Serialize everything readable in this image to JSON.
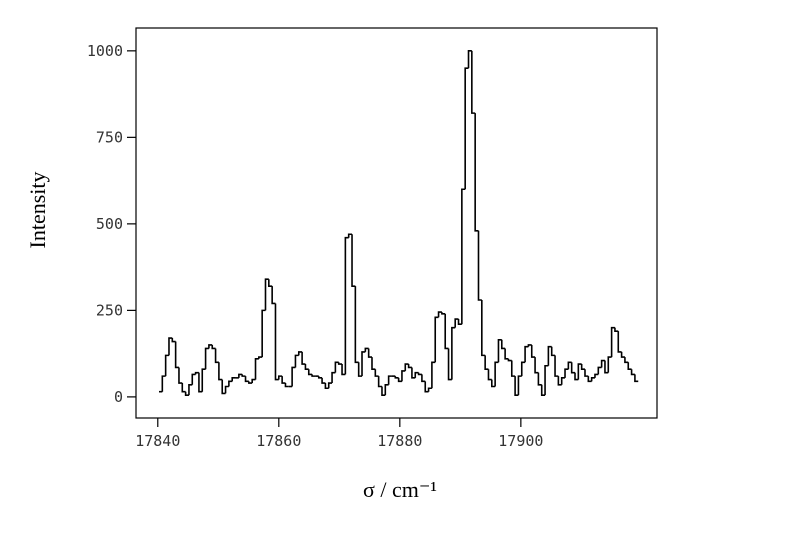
{
  "chart_data": {
    "type": "line",
    "step": true,
    "x_label": "σ / cm⁻¹",
    "y_label": "Intensity",
    "x": [
      17840.2,
      17840.75,
      17841.3,
      17841.85,
      17842.4,
      17842.95,
      17843.5,
      17844.05,
      17844.6,
      17845.15,
      17845.7,
      17846.25,
      17846.8,
      17847.35,
      17847.9,
      17848.45,
      17849,
      17849.55,
      17850.1,
      17850.65,
      17851.2,
      17851.75,
      17852.3,
      17852.85,
      17853.4,
      17853.95,
      17854.5,
      17855.05,
      17855.6,
      17856.15,
      17856.7,
      17857.25,
      17857.8,
      17858.35,
      17858.9,
      17859.45,
      17860,
      17860.55,
      17861.1,
      17861.65,
      17862.2,
      17862.75,
      17863.3,
      17863.85,
      17864.4,
      17864.95,
      17865.5,
      17866.05,
      17866.6,
      17867.15,
      17867.7,
      17868.25,
      17868.8,
      17869.35,
      17869.9,
      17870.45,
      17871,
      17871.55,
      17872.1,
      17872.65,
      17873.2,
      17873.75,
      17874.3,
      17874.85,
      17875.4,
      17875.95,
      17876.5,
      17877.05,
      17877.6,
      17878.15,
      17878.7,
      17879.25,
      17879.8,
      17880.35,
      17880.9,
      17881.45,
      17882,
      17882.55,
      17883.1,
      17883.65,
      17884.2,
      17884.75,
      17885.3,
      17885.85,
      17886.4,
      17886.95,
      17887.5,
      17888.05,
      17888.6,
      17889.15,
      17889.7,
      17890.25,
      17890.8,
      17891.35,
      17891.9,
      17892.45,
      17893,
      17893.55,
      17894.1,
      17894.65,
      17895.2,
      17895.75,
      17896.3,
      17896.85,
      17897.4,
      17897.95,
      17898.5,
      17899.05,
      17899.6,
      17900.15,
      17900.7,
      17901.25,
      17901.8,
      17902.35,
      17902.9,
      17903.45,
      17904,
      17904.55,
      17905.1,
      17905.65,
      17906.2,
      17906.75,
      17907.3,
      17907.85,
      17908.4,
      17908.95,
      17909.5,
      17910.05,
      17910.6,
      17911.15,
      17911.7,
      17912.25,
      17912.8,
      17913.35,
      17913.9,
      17914.45,
      17915,
      17915.55,
      17916.1,
      17916.65,
      17917.2,
      17917.75,
      17918.3,
      17918.85
    ],
    "values": [
      15,
      60,
      120,
      170,
      160,
      85,
      40,
      15,
      5,
      35,
      65,
      70,
      15,
      80,
      140,
      150,
      140,
      100,
      50,
      10,
      30,
      45,
      55,
      55,
      65,
      60,
      45,
      40,
      50,
      110,
      115,
      250,
      340,
      320,
      270,
      50,
      60,
      40,
      30,
      30,
      85,
      120,
      130,
      95,
      80,
      65,
      60,
      60,
      55,
      40,
      25,
      40,
      70,
      100,
      95,
      65,
      460,
      470,
      320,
      100,
      60,
      130,
      140,
      115,
      80,
      60,
      30,
      5,
      35,
      60,
      60,
      55,
      45,
      75,
      95,
      85,
      55,
      70,
      65,
      45,
      15,
      25,
      100,
      230,
      245,
      240,
      140,
      50,
      200,
      225,
      210,
      600,
      950,
      1000,
      820,
      480,
      280,
      120,
      80,
      50,
      30,
      100,
      165,
      140,
      110,
      105,
      60,
      5,
      60,
      100,
      145,
      150,
      115,
      70,
      35,
      5,
      90,
      145,
      120,
      60,
      35,
      55,
      80,
      100,
      70,
      50,
      95,
      80,
      60,
      45,
      55,
      65,
      85,
      105,
      70,
      115,
      200,
      190,
      130,
      115,
      100,
      80,
      65,
      45
    ],
    "color": "#000000",
    "xlim": [
      17836.4,
      17922.5
    ],
    "xticks": [
      17840,
      17860,
      17880,
      17900
    ],
    "ylim": [
      -61,
      1066
    ],
    "yticks": [
      0,
      250,
      500,
      750,
      1000
    ]
  }
}
